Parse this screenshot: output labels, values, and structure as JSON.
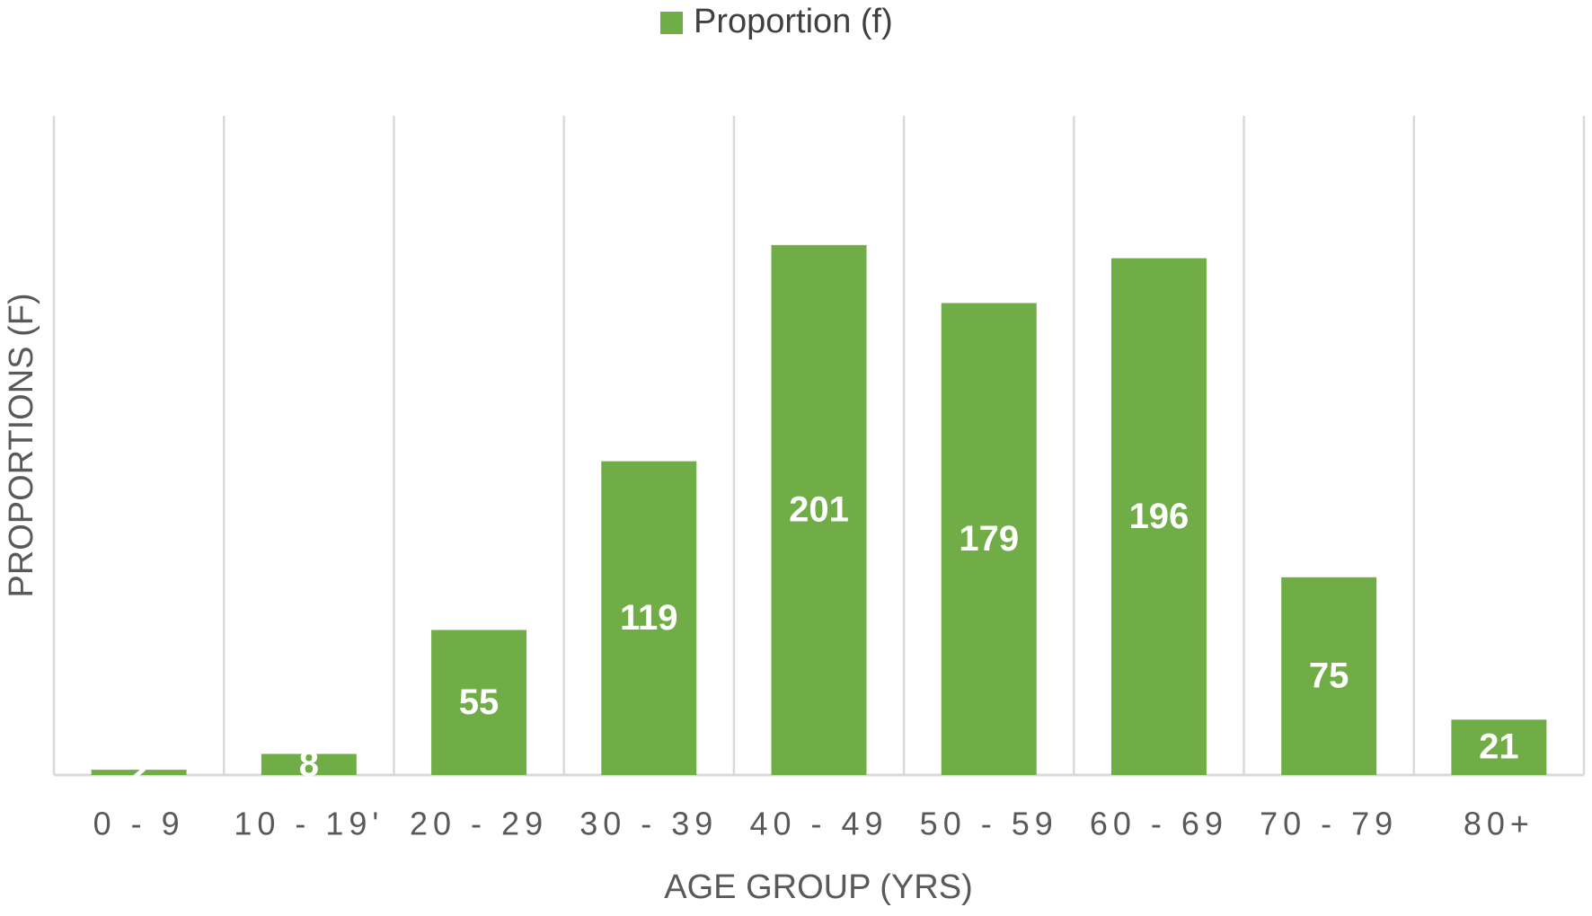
{
  "chart_data": {
    "type": "bar",
    "legend": "Proportion (f)",
    "x_label": "AGE GROUP (YRS)",
    "y_label": "PROPORTIONS (F)",
    "categories": [
      "0 - 9",
      "10 - 19'",
      "20 - 29",
      "30 - 39",
      "40 - 49",
      "50 - 59",
      "60 - 69",
      "70 - 79",
      "80+"
    ],
    "values": [
      2,
      8,
      55,
      119,
      201,
      179,
      196,
      75,
      21
    ],
    "color": "#70ad47",
    "ylim": [
      0,
      250
    ],
    "grid": true,
    "legend_position": "top"
  }
}
